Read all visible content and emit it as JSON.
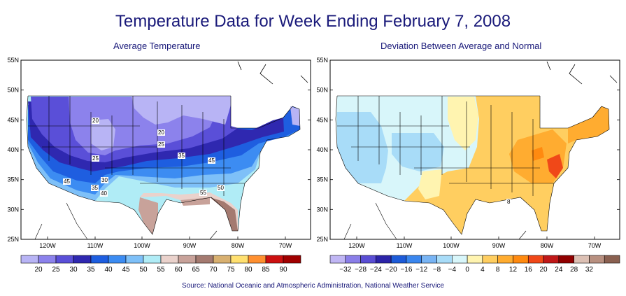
{
  "title": "Temperature Data for Week Ending February 7, 2008",
  "source": "Source:  National Oceanic and Atmospheric Administration, National Weather Service",
  "latitude_labels": [
    "55N",
    "50N",
    "45N",
    "40N",
    "35N",
    "30N",
    "25N"
  ],
  "longitude_labels": [
    "120W",
    "110W",
    "100W",
    "90W",
    "80W",
    "70W"
  ],
  "left_map": {
    "subtitle": "Average Temperature",
    "legend_values": [
      "20",
      "25",
      "30",
      "35",
      "40",
      "45",
      "50",
      "55",
      "60",
      "65",
      "70",
      "75",
      "80",
      "85",
      "90"
    ],
    "legend_colors": [
      "#b8b4f5",
      "#8c82ec",
      "#5a4fd8",
      "#2f28b0",
      "#1e5ee0",
      "#3c8cf2",
      "#7ec0f8",
      "#b0ecf6",
      "#ead2cc",
      "#c8a29a",
      "#a47a70",
      "#d8b070",
      "#ffe070",
      "#ff9030",
      "#cc1010",
      "#a00000"
    ],
    "contour_labels": [
      "20",
      "20",
      "25",
      "25",
      "30",
      "35",
      "35",
      "40",
      "45",
      "45",
      "50",
      "55"
    ]
  },
  "right_map": {
    "subtitle": "Deviation Between Average and Normal",
    "legend_values": [
      "-32",
      "-28",
      "-24",
      "-20",
      "-16",
      "-12",
      "-8",
      "-4",
      "0",
      "4",
      "8",
      "12",
      "16",
      "20",
      "24",
      "28",
      "32"
    ],
    "legend_colors": [
      "#c0b6f4",
      "#8a7ee8",
      "#5a4ed4",
      "#2c24a8",
      "#1d5bd8",
      "#3a86ee",
      "#78b4f4",
      "#a8dcf8",
      "#d8f6fa",
      "#fff4b0",
      "#ffce60",
      "#ffac30",
      "#ff8a10",
      "#f04818",
      "#c01818",
      "#900000",
      "#dcc0b4",
      "#b89080",
      "#8a6050"
    ],
    "contour_labels": [
      "8"
    ]
  }
}
